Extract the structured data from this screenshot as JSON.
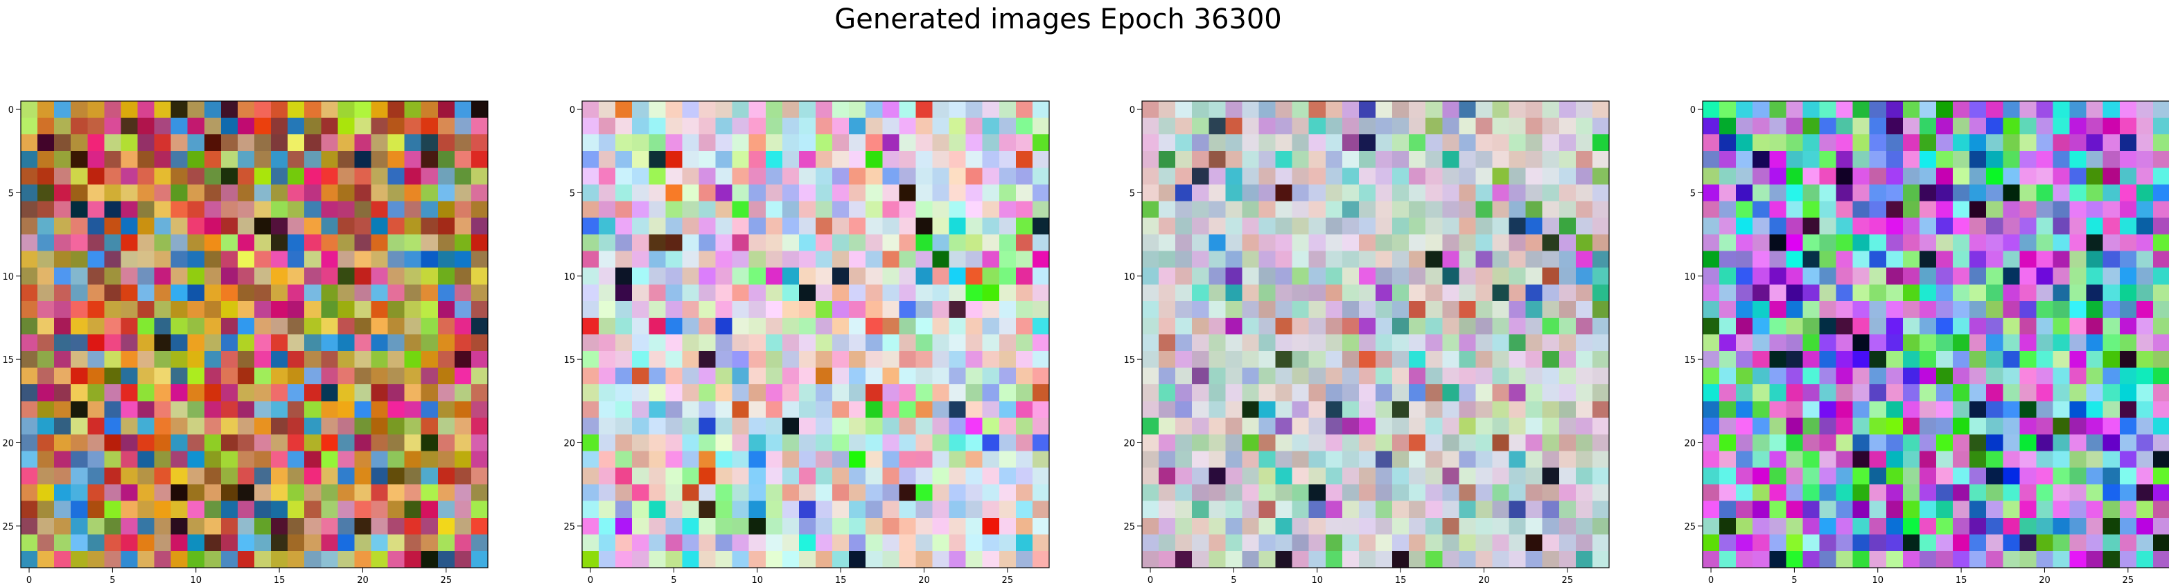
{
  "figure": {
    "title": "Generated images Epoch 36300"
  },
  "chart_data": [
    {
      "type": "heatmap",
      "palette": "warm",
      "rows": 28,
      "cols": 28,
      "xticks": [
        0,
        5,
        10,
        15,
        20,
        25
      ],
      "yticks": [
        0,
        5,
        10,
        15,
        20,
        25
      ],
      "xlim": [
        -0.5,
        27.5
      ],
      "ylim": [
        27.5,
        -0.5
      ],
      "grid": false,
      "seed": 11,
      "dark_ratio": 0.05
    },
    {
      "type": "heatmap",
      "palette": "pastel",
      "rows": 28,
      "cols": 28,
      "xticks": [
        0,
        5,
        10,
        15,
        20,
        25
      ],
      "yticks": [
        0,
        5,
        10,
        15,
        20,
        25
      ],
      "xlim": [
        -0.5,
        27.5
      ],
      "ylim": [
        27.5,
        -0.5
      ],
      "grid": false,
      "seed": 23,
      "dark_ratio": 0.025
    },
    {
      "type": "heatmap",
      "palette": "muted",
      "rows": 28,
      "cols": 28,
      "xticks": [
        0,
        5,
        10,
        15,
        20,
        25
      ],
      "yticks": [
        0,
        5,
        10,
        15,
        20,
        25
      ],
      "xlim": [
        -0.5,
        27.5
      ],
      "ylim": [
        27.5,
        -0.5
      ],
      "grid": false,
      "seed": 37,
      "dark_ratio": 0.02
    },
    {
      "type": "heatmap",
      "palette": "violet",
      "rows": 28,
      "cols": 28,
      "xticks": [
        0,
        5,
        10,
        15,
        20,
        25
      ],
      "yticks": [
        0,
        5,
        10,
        15,
        20,
        25
      ],
      "xlim": [
        -0.5,
        27.5
      ],
      "ylim": [
        27.5,
        -0.5
      ],
      "grid": false,
      "seed": 53,
      "dark_ratio": 0.04
    }
  ],
  "colors": {
    "axis_frame": "#000000",
    "text": "#000000",
    "background": "#ffffff"
  }
}
